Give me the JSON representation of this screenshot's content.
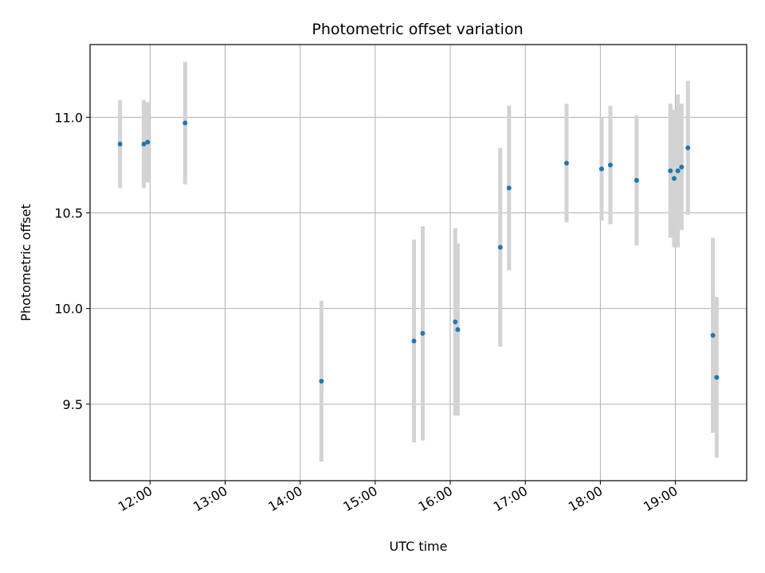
{
  "chart_data": {
    "type": "scatter",
    "title": "Photometric offset variation",
    "xlabel": "UTC time",
    "ylabel": "Photometric offset",
    "x_tick_labels": [
      "12:00",
      "13:00",
      "14:00",
      "15:00",
      "16:00",
      "17:00",
      "18:00",
      "19:00"
    ],
    "y_tick_labels": [
      "9.5",
      "10.0",
      "10.5",
      "11.0"
    ],
    "ylim": [
      9.1,
      11.38
    ],
    "xlim": [
      "11:12",
      "19:57"
    ],
    "grid": true,
    "marker_color": "#1f77b4",
    "errorbar_color": "#d3d3d3",
    "points": [
      {
        "x": "11:36",
        "y": 10.86,
        "err": 0.23
      },
      {
        "x": "11:55",
        "y": 10.86,
        "err": 0.23
      },
      {
        "x": "11:58",
        "y": 10.87,
        "err": 0.21
      },
      {
        "x": "12:28",
        "y": 10.97,
        "err": 0.32
      },
      {
        "x": "14:17",
        "y": 9.62,
        "err": 0.42
      },
      {
        "x": "15:31",
        "y": 9.83,
        "err": 0.53
      },
      {
        "x": "15:38",
        "y": 9.87,
        "err": 0.56
      },
      {
        "x": "16:04",
        "y": 9.93,
        "err": 0.49
      },
      {
        "x": "16:06",
        "y": 9.89,
        "err": 0.45
      },
      {
        "x": "16:40",
        "y": 10.32,
        "err": 0.52
      },
      {
        "x": "16:47",
        "y": 10.63,
        "err": 0.43
      },
      {
        "x": "17:33",
        "y": 10.76,
        "err": 0.31
      },
      {
        "x": "18:01",
        "y": 10.73,
        "err": 0.27
      },
      {
        "x": "18:08",
        "y": 10.75,
        "err": 0.31
      },
      {
        "x": "18:29",
        "y": 10.67,
        "err": 0.34
      },
      {
        "x": "18:56",
        "y": 10.72,
        "err": 0.35
      },
      {
        "x": "18:59",
        "y": 10.68,
        "err": 0.36
      },
      {
        "x": "19:02",
        "y": 10.72,
        "err": 0.4
      },
      {
        "x": "19:05",
        "y": 10.74,
        "err": 0.33
      },
      {
        "x": "19:10",
        "y": 10.84,
        "err": 0.35
      },
      {
        "x": "19:30",
        "y": 9.86,
        "err": 0.51
      },
      {
        "x": "19:33",
        "y": 9.64,
        "err": 0.42
      }
    ]
  }
}
